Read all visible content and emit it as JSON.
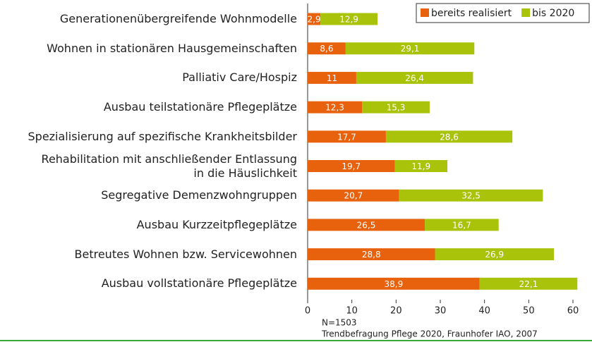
{
  "chart_data": {
    "type": "stacked_bar_horizontal",
    "categories": [
      "Generationenübergreifende Wohnmodelle",
      "Wohnen in stationären Hausgemeinschaften",
      "Palliativ Care/Hospiz",
      "Ausbau teilstationäre Pflegeplätze",
      "Spezialisierung auf spezifische Krankheitsbilder",
      "Rehabilitation mit anschließender Entlassung\nin die Häuslichkeit",
      "Segregative Demenzwohngruppen",
      "Ausbau Kurzzeitpflegeplätze",
      "Betreutes Wohnen bzw. Servicewohnen",
      "Ausbau vollstationäre Pflegeplätze"
    ],
    "series": [
      {
        "name": "bereits realisiert",
        "color": "#e8620e",
        "values": [
          2.9,
          8.6,
          11,
          12.3,
          17.7,
          19.7,
          20.7,
          26.5,
          28.8,
          38.9
        ],
        "value_labels": [
          "2,9",
          "8,6",
          "11",
          "12,3",
          "17,7",
          "19,7",
          "20,7",
          "26,5",
          "28,8",
          "38,9"
        ]
      },
      {
        "name": "bis 2020",
        "color": "#a8c30a",
        "values": [
          12.9,
          29.1,
          26.4,
          15.3,
          28.6,
          11.9,
          32.5,
          16.7,
          26.9,
          22.1
        ],
        "value_labels": [
          "12,9",
          "29,1",
          "26,4",
          "15,3",
          "28,6",
          "11,9",
          "32,5",
          "16,7",
          "26,9",
          "22,1"
        ]
      }
    ],
    "xlim": [
      0,
      60
    ],
    "xticks": [
      0,
      10,
      20,
      30,
      40,
      50,
      60
    ],
    "legend": "top-right",
    "annotations": [
      "N=1503",
      "Trendbefragung Pflege 2020, Fraunhofer IAO, 2007"
    ]
  }
}
